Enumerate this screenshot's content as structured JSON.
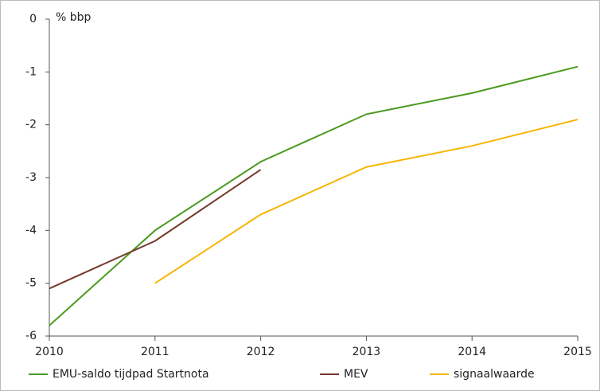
{
  "chart_data": {
    "type": "line",
    "y_label": "% bbp",
    "x": [
      2010,
      2011,
      2012,
      2013,
      2014,
      2015
    ],
    "xlim": [
      2010,
      2015
    ],
    "xticks": [
      2010,
      2011,
      2012,
      2013,
      2014,
      2015
    ],
    "ylim": [
      -6,
      0
    ],
    "yticks": [
      0,
      -1,
      -2,
      -3,
      -4,
      -5,
      -6
    ],
    "grid": false,
    "legend": "bottom",
    "series": [
      {
        "name": "EMU-saldo tijdpad Startnota",
        "color": "#4b9a1f",
        "values": [
          -5.8,
          -4.0,
          -2.7,
          -1.8,
          -1.4,
          -0.9
        ]
      },
      {
        "name": "MEV",
        "color": "#76392b",
        "values": [
          -5.1,
          -4.2,
          -2.85,
          null,
          null,
          null
        ]
      },
      {
        "name": "signaalwaarde",
        "color": "#f7b500",
        "values": [
          null,
          -5.0,
          -3.7,
          -2.8,
          -2.4,
          -1.9
        ]
      }
    ]
  }
}
